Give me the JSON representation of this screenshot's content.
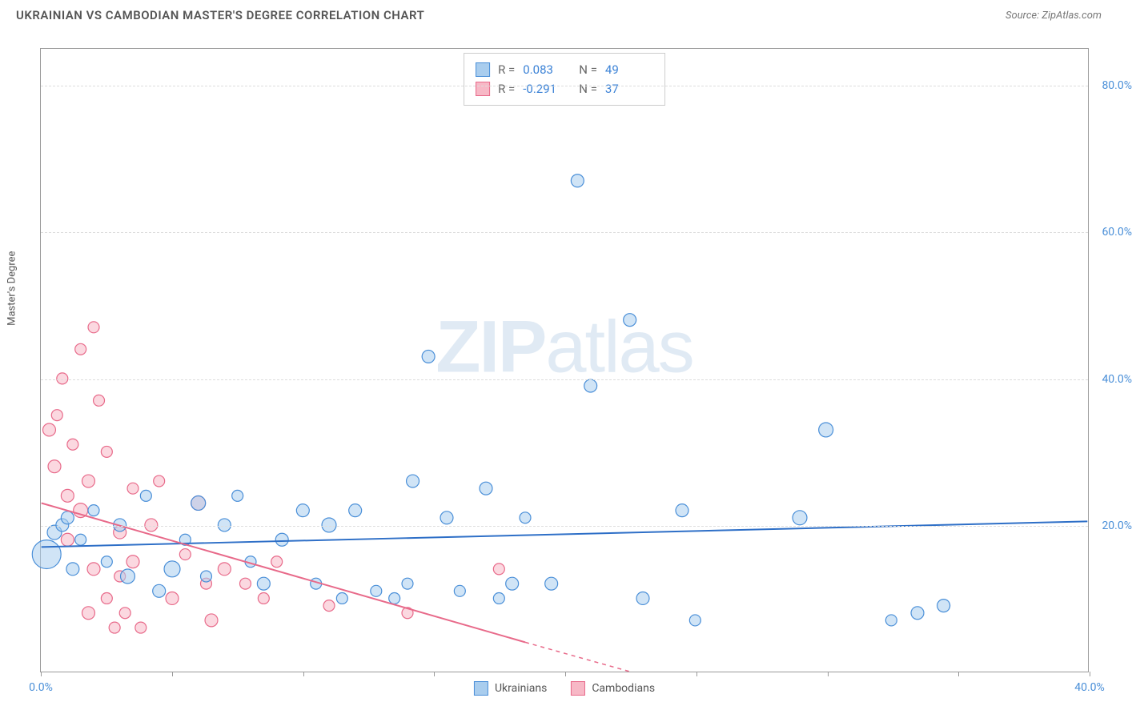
{
  "title": "UKRAINIAN VS CAMBODIAN MASTER'S DEGREE CORRELATION CHART",
  "source": "Source: ZipAtlas.com",
  "y_axis_label": "Master's Degree",
  "watermark": {
    "bold": "ZIP",
    "light": "atlas"
  },
  "chart": {
    "type": "scatter",
    "xlim": [
      0,
      40
    ],
    "ylim": [
      0,
      85
    ],
    "x_ticks": [
      0,
      5,
      10,
      15,
      20,
      25,
      30,
      35,
      40
    ],
    "x_tick_labels": {
      "0": "0.0%",
      "40": "40.0%"
    },
    "y_ticks": [
      20,
      40,
      60,
      80
    ],
    "y_tick_labels": {
      "20": "20.0%",
      "40": "40.0%",
      "60": "60.0%",
      "80": "80.0%"
    },
    "background_color": "#ffffff",
    "grid_color": "#dddddd",
    "axis_color": "#999999"
  },
  "series": {
    "ukrainians": {
      "label": "Ukrainians",
      "fill": "#a9cdee",
      "stroke": "#4a8fd8",
      "fill_opacity": 0.55,
      "r_label": "R =",
      "r_value": "0.083",
      "n_label": "N =",
      "n_value": "49",
      "value_color": "#3b82d6",
      "regression": {
        "x1": 0,
        "y1": 17,
        "x2": 40,
        "y2": 20.5,
        "color": "#2e6fc7",
        "width": 2
      },
      "points": [
        {
          "x": 0.2,
          "y": 16,
          "r": 18
        },
        {
          "x": 0.5,
          "y": 19,
          "r": 9
        },
        {
          "x": 0.8,
          "y": 20,
          "r": 8
        },
        {
          "x": 1.0,
          "y": 21,
          "r": 8
        },
        {
          "x": 1.2,
          "y": 14,
          "r": 8
        },
        {
          "x": 1.5,
          "y": 18,
          "r": 7
        },
        {
          "x": 2.0,
          "y": 22,
          "r": 7
        },
        {
          "x": 2.5,
          "y": 15,
          "r": 7
        },
        {
          "x": 3.0,
          "y": 20,
          "r": 8
        },
        {
          "x": 3.3,
          "y": 13,
          "r": 9
        },
        {
          "x": 4.0,
          "y": 24,
          "r": 7
        },
        {
          "x": 4.5,
          "y": 11,
          "r": 8
        },
        {
          "x": 5.0,
          "y": 14,
          "r": 10
        },
        {
          "x": 5.5,
          "y": 18,
          "r": 7
        },
        {
          "x": 6.0,
          "y": 23,
          "r": 9
        },
        {
          "x": 6.3,
          "y": 13,
          "r": 7
        },
        {
          "x": 7.0,
          "y": 20,
          "r": 8
        },
        {
          "x": 7.5,
          "y": 24,
          "r": 7
        },
        {
          "x": 8.0,
          "y": 15,
          "r": 7
        },
        {
          "x": 8.5,
          "y": 12,
          "r": 8
        },
        {
          "x": 9.2,
          "y": 18,
          "r": 8
        },
        {
          "x": 10.0,
          "y": 22,
          "r": 8
        },
        {
          "x": 10.5,
          "y": 12,
          "r": 7
        },
        {
          "x": 11.0,
          "y": 20,
          "r": 9
        },
        {
          "x": 11.5,
          "y": 10,
          "r": 7
        },
        {
          "x": 12.0,
          "y": 22,
          "r": 8
        },
        {
          "x": 12.8,
          "y": 11,
          "r": 7
        },
        {
          "x": 13.5,
          "y": 10,
          "r": 7
        },
        {
          "x": 14.0,
          "y": 12,
          "r": 7
        },
        {
          "x": 14.2,
          "y": 26,
          "r": 8
        },
        {
          "x": 14.8,
          "y": 43,
          "r": 8
        },
        {
          "x": 15.5,
          "y": 21,
          "r": 8
        },
        {
          "x": 16.0,
          "y": 11,
          "r": 7
        },
        {
          "x": 17.0,
          "y": 25,
          "r": 8
        },
        {
          "x": 17.5,
          "y": 10,
          "r": 7
        },
        {
          "x": 18.0,
          "y": 12,
          "r": 8
        },
        {
          "x": 18.5,
          "y": 21,
          "r": 7
        },
        {
          "x": 19.5,
          "y": 12,
          "r": 8
        },
        {
          "x": 20.5,
          "y": 67,
          "r": 8
        },
        {
          "x": 21.0,
          "y": 39,
          "r": 8
        },
        {
          "x": 22.5,
          "y": 48,
          "r": 8
        },
        {
          "x": 23.0,
          "y": 10,
          "r": 8
        },
        {
          "x": 24.5,
          "y": 22,
          "r": 8
        },
        {
          "x": 25.0,
          "y": 7,
          "r": 7
        },
        {
          "x": 29.0,
          "y": 21,
          "r": 9
        },
        {
          "x": 30.0,
          "y": 33,
          "r": 9
        },
        {
          "x": 32.5,
          "y": 7,
          "r": 7
        },
        {
          "x": 33.5,
          "y": 8,
          "r": 8
        },
        {
          "x": 34.5,
          "y": 9,
          "r": 8
        }
      ]
    },
    "cambodians": {
      "label": "Cambodians",
      "fill": "#f7b8c6",
      "stroke": "#e86a8a",
      "fill_opacity": 0.55,
      "r_label": "R =",
      "r_value": "-0.291",
      "n_label": "N =",
      "n_value": "37",
      "value_color": "#3b82d6",
      "regression_solid": {
        "x1": 0,
        "y1": 23,
        "x2": 18.5,
        "y2": 4,
        "color": "#e86a8a",
        "width": 2
      },
      "regression_dash": {
        "x1": 18.5,
        "y1": 4,
        "x2": 22.5,
        "y2": 0,
        "color": "#e86a8a",
        "width": 1.5
      },
      "points": [
        {
          "x": 0.3,
          "y": 33,
          "r": 8
        },
        {
          "x": 0.5,
          "y": 28,
          "r": 8
        },
        {
          "x": 0.6,
          "y": 35,
          "r": 7
        },
        {
          "x": 0.8,
          "y": 40,
          "r": 7
        },
        {
          "x": 1.0,
          "y": 24,
          "r": 8
        },
        {
          "x": 1.0,
          "y": 18,
          "r": 8
        },
        {
          "x": 1.2,
          "y": 31,
          "r": 7
        },
        {
          "x": 1.5,
          "y": 22,
          "r": 9
        },
        {
          "x": 1.5,
          "y": 44,
          "r": 7
        },
        {
          "x": 1.8,
          "y": 26,
          "r": 8
        },
        {
          "x": 1.8,
          "y": 8,
          "r": 8
        },
        {
          "x": 2.0,
          "y": 47,
          "r": 7
        },
        {
          "x": 2.0,
          "y": 14,
          "r": 8
        },
        {
          "x": 2.2,
          "y": 37,
          "r": 7
        },
        {
          "x": 2.5,
          "y": 30,
          "r": 7
        },
        {
          "x": 2.5,
          "y": 10,
          "r": 7
        },
        {
          "x": 2.8,
          "y": 6,
          "r": 7
        },
        {
          "x": 3.0,
          "y": 19,
          "r": 8
        },
        {
          "x": 3.0,
          "y": 13,
          "r": 7
        },
        {
          "x": 3.2,
          "y": 8,
          "r": 7
        },
        {
          "x": 3.5,
          "y": 25,
          "r": 7
        },
        {
          "x": 3.5,
          "y": 15,
          "r": 8
        },
        {
          "x": 3.8,
          "y": 6,
          "r": 7
        },
        {
          "x": 4.2,
          "y": 20,
          "r": 8
        },
        {
          "x": 4.5,
          "y": 26,
          "r": 7
        },
        {
          "x": 5.0,
          "y": 10,
          "r": 8
        },
        {
          "x": 5.5,
          "y": 16,
          "r": 7
        },
        {
          "x": 6.0,
          "y": 23,
          "r": 9
        },
        {
          "x": 6.3,
          "y": 12,
          "r": 7
        },
        {
          "x": 6.5,
          "y": 7,
          "r": 8
        },
        {
          "x": 7.0,
          "y": 14,
          "r": 8
        },
        {
          "x": 7.8,
          "y": 12,
          "r": 7
        },
        {
          "x": 8.5,
          "y": 10,
          "r": 7
        },
        {
          "x": 9.0,
          "y": 15,
          "r": 7
        },
        {
          "x": 11.0,
          "y": 9,
          "r": 7
        },
        {
          "x": 14.0,
          "y": 8,
          "r": 7
        },
        {
          "x": 17.5,
          "y": 14,
          "r": 7
        }
      ]
    }
  }
}
